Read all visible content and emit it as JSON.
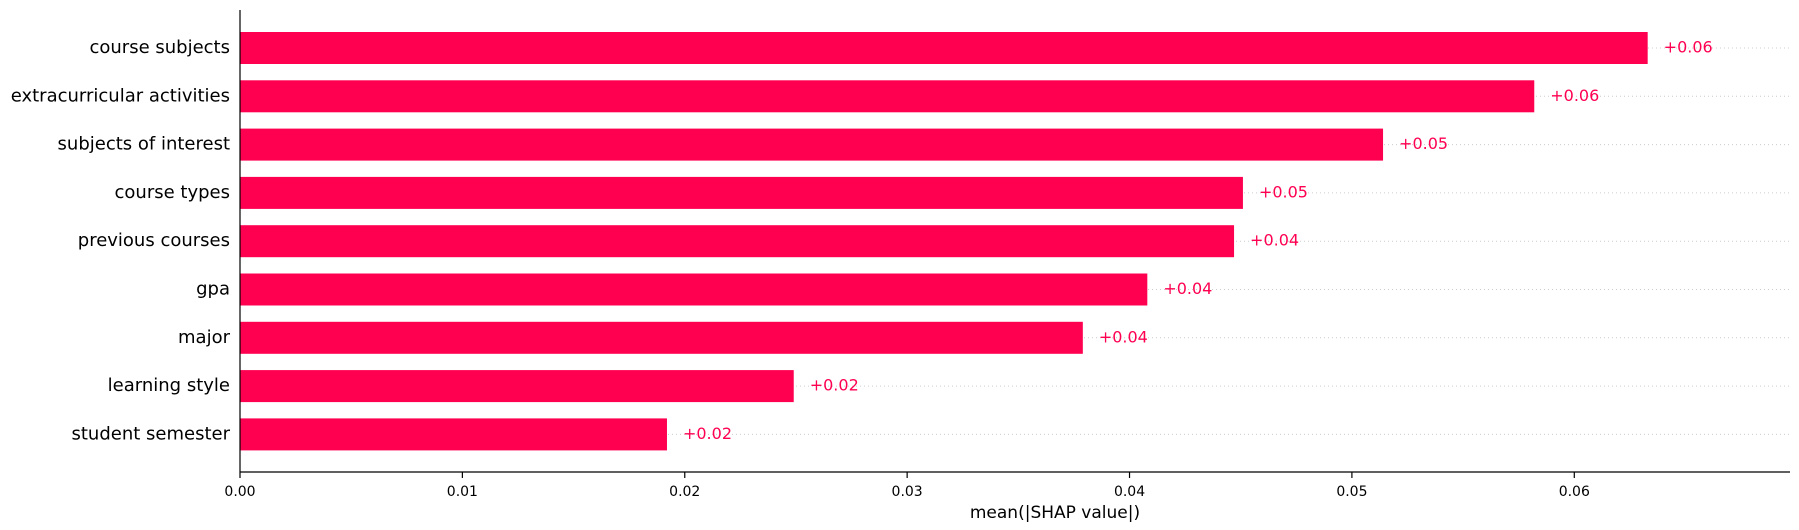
{
  "chart_data": {
    "type": "bar",
    "orientation": "horizontal",
    "title": "",
    "xlabel": "mean(|SHAP value|)",
    "ylabel": "",
    "xlim": [
      0,
      0.0697
    ],
    "xticks": [
      0.0,
      0.01,
      0.02,
      0.03,
      0.04,
      0.05,
      0.06
    ],
    "xtick_labels": [
      "0.00",
      "0.01",
      "0.02",
      "0.03",
      "0.04",
      "0.05",
      "0.06"
    ],
    "grid": "dotted horizontal guide lines per bar",
    "legend": "none",
    "bar_color": "#ff0051",
    "label_color": "#ff0051",
    "categories": [
      "course subjects",
      "extracurricular activities",
      "subjects of interest",
      "course types",
      "previous courses",
      "gpa",
      "major",
      "learning style",
      "student semester"
    ],
    "values": [
      0.0633,
      0.0582,
      0.0514,
      0.0451,
      0.0447,
      0.0408,
      0.0379,
      0.0249,
      0.0192
    ],
    "value_labels": [
      "+0.06",
      "+0.06",
      "+0.05",
      "+0.05",
      "+0.04",
      "+0.04",
      "+0.04",
      "+0.02",
      "+0.02"
    ]
  }
}
